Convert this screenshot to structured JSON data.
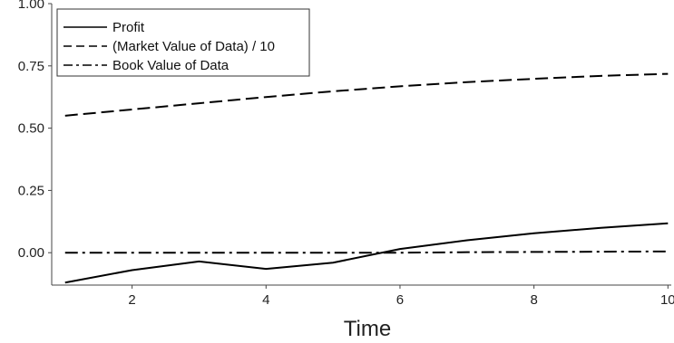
{
  "chart_data": {
    "type": "line",
    "title": "",
    "xlabel": "Time",
    "ylabel": "",
    "xlim": [
      0.8,
      10.05
    ],
    "ylim": [
      -0.13,
      1.0
    ],
    "x_ticks": [
      2,
      4,
      6,
      8,
      10
    ],
    "x_tick_labels": [
      "2",
      "4",
      "6",
      "8",
      "10"
    ],
    "y_ticks": [
      0.0,
      0.25,
      0.5,
      0.75,
      1.0
    ],
    "y_tick_labels": [
      "0.00",
      "0.25",
      "0.50",
      "0.75",
      "1.00"
    ],
    "grid": false,
    "legend_position": "top-left",
    "x": [
      1,
      2,
      3,
      4,
      5,
      6,
      7,
      8,
      9,
      10
    ],
    "series": [
      {
        "name": "Profit",
        "style": "solid",
        "color": "#000000",
        "values": [
          -0.12,
          -0.07,
          -0.035,
          -0.065,
          -0.04,
          0.015,
          0.05,
          0.078,
          0.1,
          0.118
        ]
      },
      {
        "name": "(Market Value of Data) / 10",
        "style": "dashed",
        "color": "#000000",
        "values": [
          0.55,
          0.575,
          0.6,
          0.625,
          0.648,
          0.668,
          0.685,
          0.698,
          0.71,
          0.718
        ]
      },
      {
        "name": "Book Value of Data",
        "style": "dashdot",
        "color": "#000000",
        "values": [
          0.0,
          0.0,
          0.0,
          0.0,
          0.0,
          0.0,
          0.002,
          0.003,
          0.004,
          0.005
        ]
      }
    ]
  }
}
